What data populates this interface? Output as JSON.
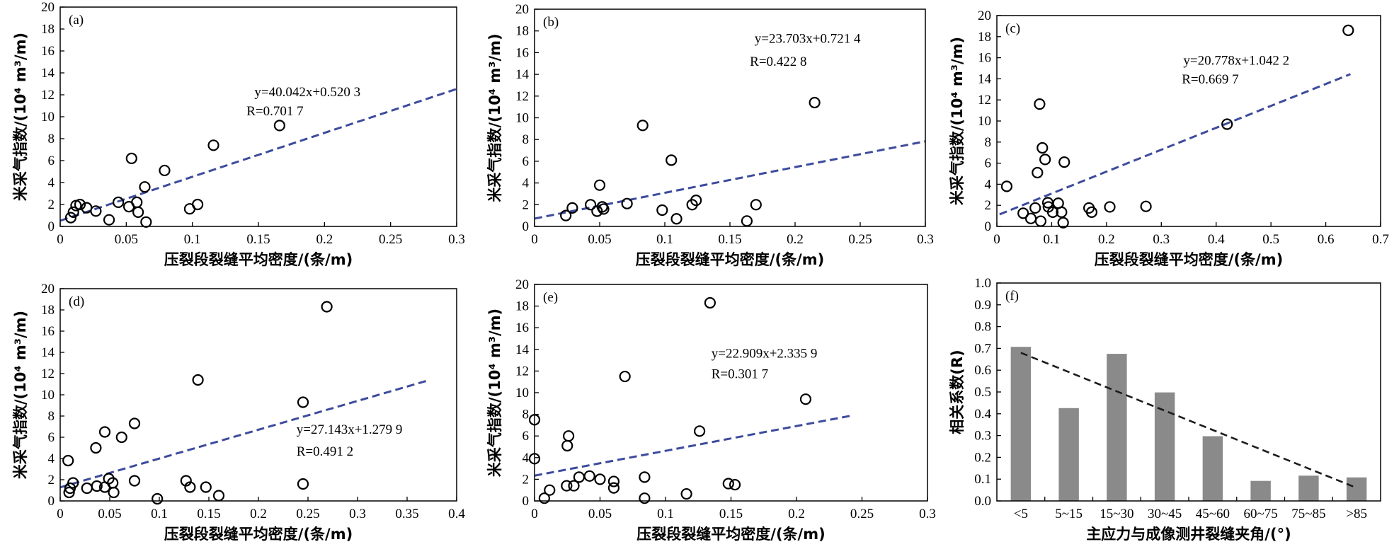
{
  "chart_data": [
    {
      "panel": "(a)",
      "type": "scatter",
      "xlabel": "压裂段裂缝平均密度/(条/m)",
      "ylabel": "米采气指数/(10⁴ m³/m)",
      "xlim": [
        0,
        0.3
      ],
      "ylim": [
        0,
        20
      ],
      "xticks": [
        "0",
        "0.05",
        "0.1",
        "0.15",
        "0.2",
        "0.25",
        "0.3"
      ],
      "yticks": [
        "0",
        "2",
        "4",
        "6",
        "8",
        "10",
        "12",
        "14",
        "16",
        "18",
        "20"
      ],
      "points": [
        [
          0.008,
          0.8
        ],
        [
          0.01,
          1.3
        ],
        [
          0.012,
          1.9
        ],
        [
          0.015,
          2.0
        ],
        [
          0.02,
          1.7
        ],
        [
          0.027,
          1.4
        ],
        [
          0.037,
          0.6
        ],
        [
          0.044,
          2.2
        ],
        [
          0.052,
          1.8
        ],
        [
          0.054,
          6.2
        ],
        [
          0.058,
          2.2
        ],
        [
          0.059,
          1.3
        ],
        [
          0.064,
          3.6
        ],
        [
          0.065,
          0.4
        ],
        [
          0.079,
          5.1
        ],
        [
          0.098,
          1.6
        ],
        [
          0.104,
          2.0
        ],
        [
          0.116,
          7.4
        ],
        [
          0.166,
          9.2
        ]
      ],
      "fit": {
        "slope": 40.042,
        "intercept": 0.5203,
        "x_range": [
          0,
          0.3
        ]
      },
      "equation": "y=40.042x+0.520 3",
      "r_label": "R=0.701 7",
      "colors": {
        "marker": "#000000",
        "fit": "#3d4b9c"
      }
    },
    {
      "panel": "(b)",
      "type": "scatter",
      "xlabel": "压裂段裂缝平均密度/(条/m)",
      "ylabel": "米采气指数/(10⁴ m³/m)",
      "xlim": [
        0,
        0.3
      ],
      "ylim": [
        0,
        20
      ],
      "xticks": [
        "0",
        "0.05",
        "0.1",
        "0.15",
        "0.2",
        "0.25",
        "0.3"
      ],
      "yticks": [
        "0",
        "2",
        "4",
        "6",
        "8",
        "10",
        "12",
        "14",
        "16",
        "18",
        "20"
      ],
      "points": [
        [
          0.024,
          1.0
        ],
        [
          0.029,
          1.7
        ],
        [
          0.043,
          2.0
        ],
        [
          0.048,
          1.4
        ],
        [
          0.05,
          3.8
        ],
        [
          0.052,
          1.8
        ],
        [
          0.053,
          1.6
        ],
        [
          0.071,
          2.1
        ],
        [
          0.083,
          9.3
        ],
        [
          0.098,
          1.5
        ],
        [
          0.105,
          6.1
        ],
        [
          0.109,
          0.7
        ],
        [
          0.121,
          2.0
        ],
        [
          0.124,
          2.4
        ],
        [
          0.163,
          0.5
        ],
        [
          0.17,
          2.0
        ],
        [
          0.215,
          11.4
        ]
      ],
      "fit": {
        "slope": 23.703,
        "intercept": 0.7214,
        "x_range": [
          0,
          0.3
        ]
      },
      "equation": "y=23.703x+0.721 4",
      "r_label": "R=0.422 8",
      "colors": {
        "marker": "#000000",
        "fit": "#3d4b9c"
      }
    },
    {
      "panel": "(c)",
      "type": "scatter",
      "xlabel": "压裂段裂缝平均密度/(条/m)",
      "ylabel": "米采气指数/(10⁴ m³/m)",
      "xlim": [
        0,
        0.7
      ],
      "ylim": [
        0,
        20
      ],
      "xticks": [
        "0",
        "0.1",
        "0.2",
        "0.3",
        "0.4",
        "0.5",
        "0.6",
        "0.7"
      ],
      "yticks": [
        "0",
        "2",
        "4",
        "6",
        "8",
        "10",
        "12",
        "14",
        "16",
        "18",
        "20"
      ],
      "points": [
        [
          0.018,
          3.8
        ],
        [
          0.048,
          1.25
        ],
        [
          0.062,
          0.75
        ],
        [
          0.07,
          1.75
        ],
        [
          0.074,
          5.1
        ],
        [
          0.08,
          0.5
        ],
        [
          0.078,
          11.6
        ],
        [
          0.083,
          7.45
        ],
        [
          0.088,
          6.35
        ],
        [
          0.093,
          2.25
        ],
        [
          0.094,
          1.85
        ],
        [
          0.102,
          1.35
        ],
        [
          0.112,
          2.2
        ],
        [
          0.118,
          1.35
        ],
        [
          0.121,
          0.35
        ],
        [
          0.123,
          6.1
        ],
        [
          0.168,
          1.75
        ],
        [
          0.173,
          1.35
        ],
        [
          0.206,
          1.85
        ],
        [
          0.272,
          1.9
        ],
        [
          0.42,
          9.7
        ],
        [
          0.641,
          18.6
        ]
      ],
      "fit": {
        "slope": 20.778,
        "intercept": 1.0422,
        "x_range": [
          0.005,
          0.645
        ]
      },
      "equation": "y=20.778x+1.042 2",
      "r_label": "R=0.669 7",
      "colors": {
        "marker": "#000000",
        "fit": "#3d4b9c"
      }
    },
    {
      "panel": "(d)",
      "type": "scatter",
      "xlabel": "压裂段裂缝平均密度/(条/m)",
      "ylabel": "米采气指数/(10⁴ m³/m)",
      "xlim": [
        0,
        0.4
      ],
      "ylim": [
        0,
        20
      ],
      "xticks": [
        "0",
        "0.05",
        "0.1",
        "0.15",
        "0.2",
        "0.25",
        "0.3",
        "0.35",
        "0.4"
      ],
      "yticks": [
        "0",
        "2",
        "4",
        "6",
        "8",
        "10",
        "12",
        "14",
        "16",
        "18",
        "20"
      ],
      "points": [
        [
          0.008,
          3.8
        ],
        [
          0.009,
          0.8
        ],
        [
          0.01,
          1.2
        ],
        [
          0.013,
          1.7
        ],
        [
          0.027,
          1.2
        ],
        [
          0.036,
          5.0
        ],
        [
          0.037,
          1.4
        ],
        [
          0.045,
          6.5
        ],
        [
          0.045,
          1.3
        ],
        [
          0.049,
          2.1
        ],
        [
          0.053,
          1.7
        ],
        [
          0.054,
          0.8
        ],
        [
          0.062,
          6.0
        ],
        [
          0.075,
          7.3
        ],
        [
          0.075,
          1.9
        ],
        [
          0.098,
          0.2
        ],
        [
          0.127,
          1.9
        ],
        [
          0.131,
          1.3
        ],
        [
          0.139,
          11.4
        ],
        [
          0.147,
          1.3
        ],
        [
          0.16,
          0.5
        ],
        [
          0.245,
          9.3
        ],
        [
          0.245,
          1.6
        ],
        [
          0.269,
          18.3
        ]
      ],
      "fit": {
        "slope": 27.143,
        "intercept": 1.2799,
        "x_range": [
          0,
          0.37
        ]
      },
      "equation": "y=27.143x+1.279 9",
      "r_label": "R=0.491 2",
      "colors": {
        "marker": "#000000",
        "fit": "#3d4b9c"
      }
    },
    {
      "panel": "(e)",
      "type": "scatter",
      "xlabel": "压裂段裂缝平均密度/(条/m)",
      "ylabel": "米采气指数/(10⁴ m³/m)",
      "xlim": [
        0,
        0.3
      ],
      "ylim": [
        0,
        20
      ],
      "xticks": [
        "0",
        "0.05",
        "0.1",
        "0.15",
        "0.2",
        "0.25",
        "0.3"
      ],
      "yticks": [
        "0",
        "2",
        "4",
        "6",
        "8",
        "10",
        "12",
        "14",
        "16",
        "18",
        "20"
      ],
      "points": [
        [
          0.0,
          7.5
        ],
        [
          0.0,
          3.9
        ],
        [
          0.0075,
          0.25
        ],
        [
          0.0115,
          1.0
        ],
        [
          0.0245,
          1.4
        ],
        [
          0.025,
          5.1
        ],
        [
          0.026,
          6.0
        ],
        [
          0.03,
          1.4
        ],
        [
          0.034,
          2.2
        ],
        [
          0.042,
          2.3
        ],
        [
          0.05,
          2.0
        ],
        [
          0.0605,
          1.8
        ],
        [
          0.0605,
          1.2
        ],
        [
          0.069,
          11.5
        ],
        [
          0.084,
          2.2
        ],
        [
          0.084,
          0.25
        ],
        [
          0.116,
          0.65
        ],
        [
          0.126,
          6.45
        ],
        [
          0.134,
          18.3
        ],
        [
          0.148,
          1.6
        ],
        [
          0.153,
          1.5
        ],
        [
          0.207,
          9.4
        ]
      ],
      "fit": {
        "slope": 22.909,
        "intercept": 2.3359,
        "x_range": [
          0,
          0.243
        ]
      },
      "equation": "y=22.909x+2.335 9",
      "r_label": "R=0.301 7",
      "colors": {
        "marker": "#000000",
        "fit": "#3d4b9c"
      }
    },
    {
      "panel": "(f)",
      "type": "bar",
      "xlabel": "主应力与成像测井裂缝夹角/(°)",
      "ylabel": "相关系数(R)",
      "categories": [
        "<5",
        "5~15",
        "15~30",
        "30~45",
        "45~60",
        "60~75",
        "75~85",
        ">85"
      ],
      "values": [
        0.707,
        0.426,
        0.675,
        0.498,
        0.297,
        0.092,
        0.116,
        0.108
      ],
      "ylim": [
        0,
        1.0
      ],
      "yticks": [
        "0.0",
        "0.1",
        "0.2",
        "0.3",
        "0.4",
        "0.5",
        "0.6",
        "0.7",
        "0.8",
        "0.9",
        "1.0"
      ],
      "trend": {
        "start": 0.68,
        "end": 0.06
      },
      "colors": {
        "bar": "#8a8a8a",
        "trend": "#1c1c1c"
      }
    }
  ]
}
